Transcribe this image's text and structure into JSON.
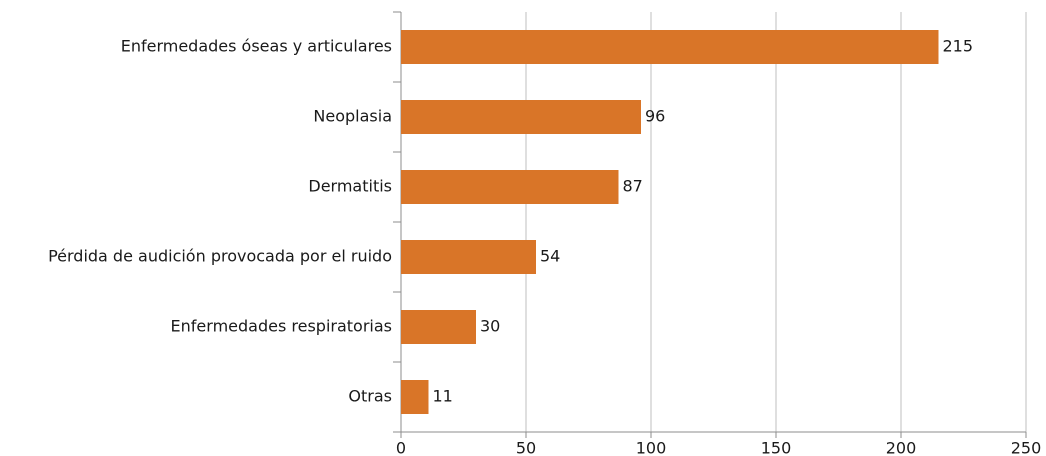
{
  "chart_data": {
    "type": "bar",
    "orientation": "horizontal",
    "categories": [
      "Enfermedades óseas y articulares",
      "Neoplasia",
      "Dermatitis",
      "Pérdida de audición provocada por el ruido",
      "Enfermedades respiratorias",
      "Otras"
    ],
    "values": [
      215,
      96,
      87,
      54,
      30,
      11
    ],
    "color": "#d97528",
    "xlim": [
      0,
      250
    ],
    "xticks": [
      0,
      50,
      100,
      150,
      200,
      250
    ],
    "grid": true
  }
}
